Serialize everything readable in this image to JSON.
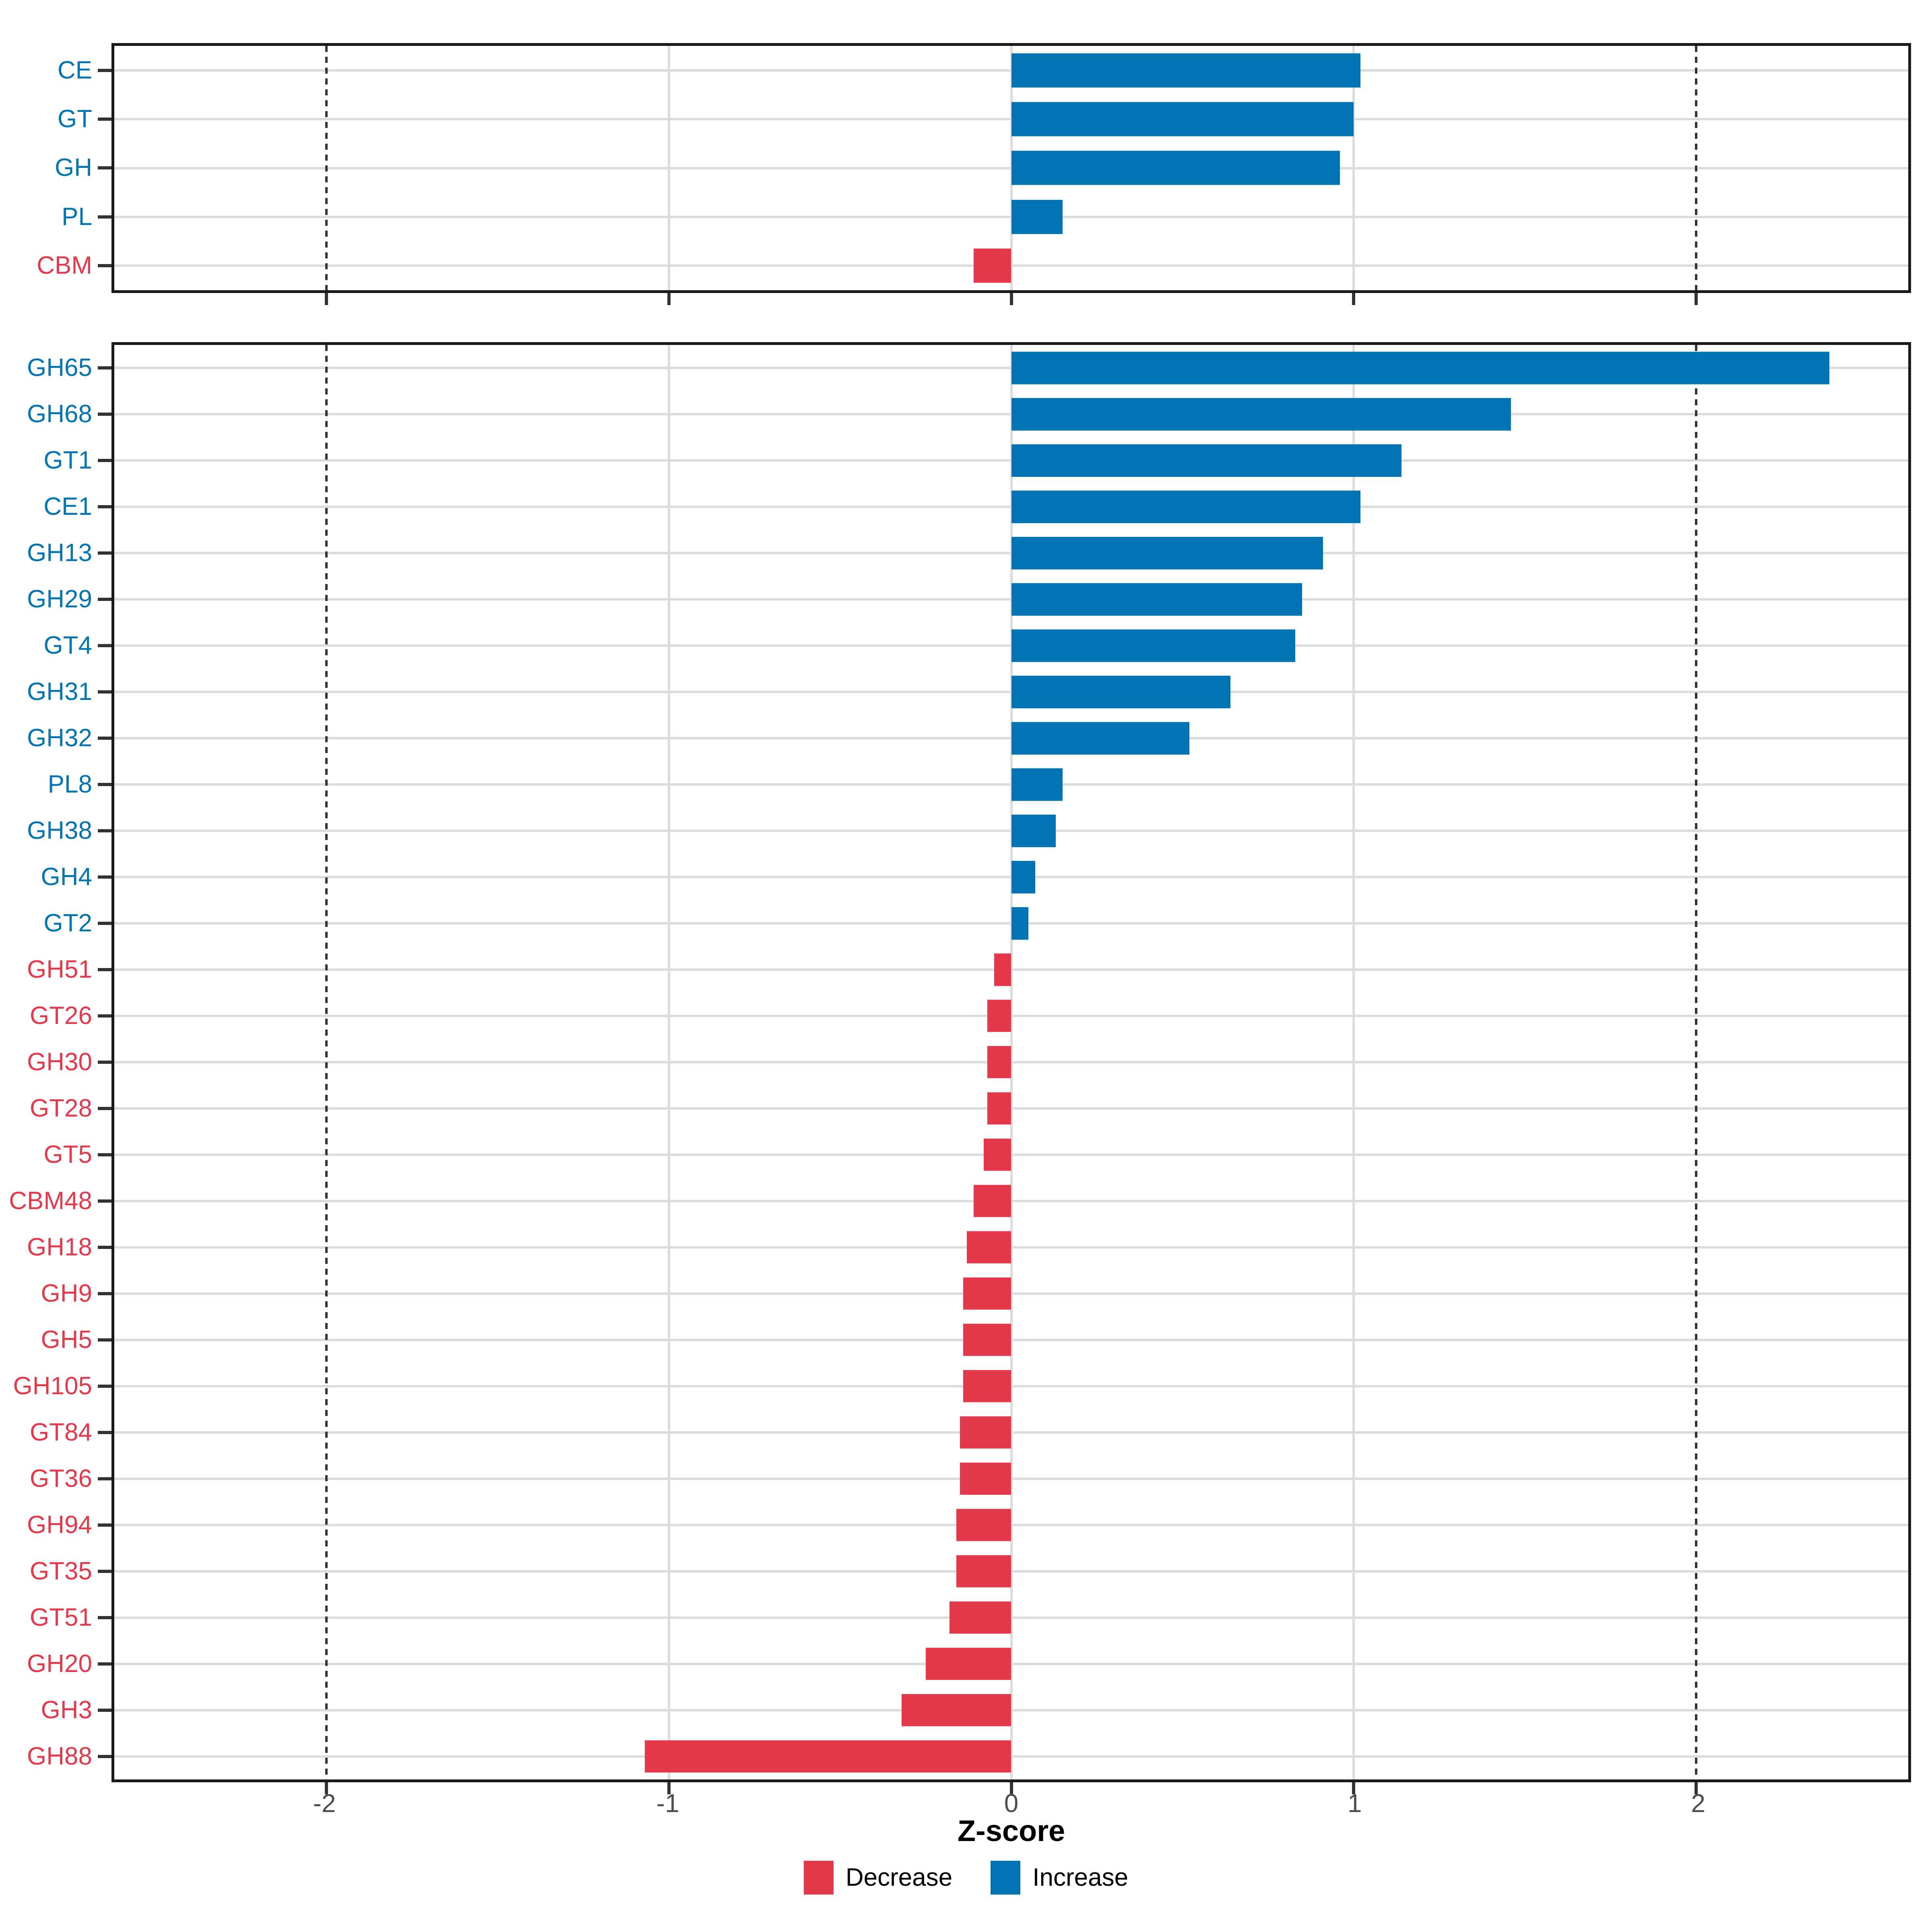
{
  "axis": {
    "title": "Z-score",
    "min": -2.62,
    "max": 2.62,
    "tick_values": [
      -2,
      -1,
      0,
      1,
      2
    ],
    "tick_labels": [
      "-2",
      "-1",
      "0",
      "1",
      "2"
    ],
    "major_gridlines": [
      -1,
      0,
      1
    ],
    "dashed_reference_lines": [
      -2,
      2
    ],
    "grid": "on"
  },
  "colors": {
    "increase": "#0274B3",
    "decrease": "#E4394B",
    "gridline": "#dcdcdc",
    "dashed_line": "#333333",
    "axis_text": "#4d4d4d",
    "panel_border": "#1a1a1a"
  },
  "legend": {
    "position": "bottom-center",
    "items": [
      {
        "label": "Decrease",
        "direction": "decrease",
        "color": "#E4394B"
      },
      {
        "label": "Increase",
        "direction": "increase",
        "color": "#0274B3"
      }
    ]
  },
  "chart_data": [
    {
      "type": "bar",
      "orientation": "horizontal",
      "panel": "top",
      "title": "",
      "xlabel": "Z-score",
      "ylabel": "",
      "xlim": [
        -2.62,
        2.62
      ],
      "categories": [
        "CE",
        "GT",
        "GH",
        "PL",
        "CBM"
      ],
      "values": [
        1.02,
        1.0,
        0.96,
        0.15,
        -0.11
      ],
      "directions": [
        "increase",
        "increase",
        "increase",
        "increase",
        "decrease"
      ]
    },
    {
      "type": "bar",
      "orientation": "horizontal",
      "panel": "bottom",
      "title": "",
      "xlabel": "Z-score",
      "ylabel": "",
      "xlim": [
        -2.62,
        2.62
      ],
      "categories": [
        "GH65",
        "GH68",
        "GT1",
        "CE1",
        "GH13",
        "GH29",
        "GT4",
        "GH31",
        "GH32",
        "PL8",
        "GH38",
        "GH4",
        "GT2",
        "GH51",
        "GT26",
        "GH30",
        "GT28",
        "GT5",
        "CBM48",
        "GH18",
        "GH9",
        "GH5",
        "GH105",
        "GT84",
        "GT36",
        "GH94",
        "GT35",
        "GT51",
        "GH20",
        "GH3",
        "GH88"
      ],
      "values": [
        2.39,
        1.46,
        1.14,
        1.02,
        0.91,
        0.85,
        0.83,
        0.64,
        0.52,
        0.15,
        0.13,
        0.07,
        0.05,
        -0.05,
        -0.07,
        -0.07,
        -0.07,
        -0.08,
        -0.11,
        -0.13,
        -0.14,
        -0.14,
        -0.14,
        -0.15,
        -0.15,
        -0.16,
        -0.16,
        -0.18,
        -0.25,
        -0.32,
        -1.07
      ],
      "directions": [
        "increase",
        "increase",
        "increase",
        "increase",
        "increase",
        "increase",
        "increase",
        "increase",
        "increase",
        "increase",
        "increase",
        "increase",
        "increase",
        "decrease",
        "decrease",
        "decrease",
        "decrease",
        "decrease",
        "decrease",
        "decrease",
        "decrease",
        "decrease",
        "decrease",
        "decrease",
        "decrease",
        "decrease",
        "decrease",
        "decrease",
        "decrease",
        "decrease",
        "decrease"
      ]
    }
  ]
}
